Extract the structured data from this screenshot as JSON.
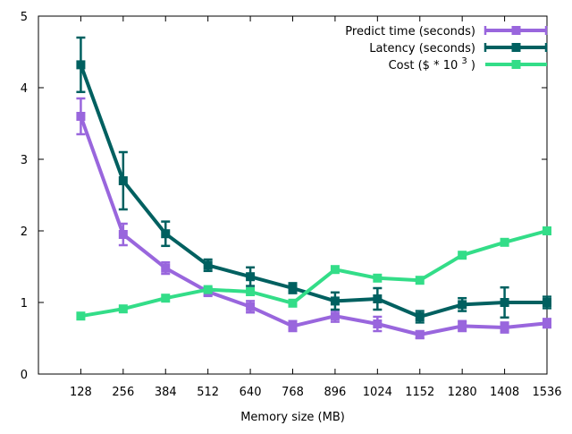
{
  "chart_data": {
    "type": "line",
    "title": "",
    "xlabel": "Memory size (MB)",
    "ylabel": "",
    "xlim": [
      0,
      1536
    ],
    "ylim": [
      0,
      5
    ],
    "grid": false,
    "legend_position": "top-right",
    "categories": [
      "128",
      "256",
      "384",
      "512",
      "640",
      "768",
      "896",
      "1024",
      "1152",
      "1280",
      "1408",
      "1536"
    ],
    "x": [
      128,
      256,
      384,
      512,
      640,
      768,
      896,
      1024,
      1152,
      1280,
      1408,
      1536
    ],
    "y_ticks": [
      "0",
      "1",
      "2",
      "3",
      "4",
      "5"
    ],
    "series": [
      {
        "name": "Predict time (seconds)",
        "color": "#9966dd",
        "values": [
          3.6,
          1.95,
          1.48,
          1.15,
          0.94,
          0.67,
          0.81,
          0.7,
          0.55,
          0.67,
          0.65,
          0.71
        ],
        "err": [
          0.25,
          0.15,
          0.08,
          0.06,
          0.08,
          0.07,
          0.08,
          0.1,
          0.05,
          0.07,
          0.07,
          0.06
        ]
      },
      {
        "name": "Latency (seconds)",
        "color": "#006060",
        "values": [
          4.32,
          2.7,
          1.96,
          1.52,
          1.36,
          1.2,
          1.02,
          1.05,
          0.8,
          0.97,
          1.0,
          1.0
        ],
        "err": [
          0.38,
          0.4,
          0.17,
          0.08,
          0.13,
          0.07,
          0.12,
          0.15,
          0.08,
          0.09,
          0.21,
          0.08
        ]
      },
      {
        "name": "Cost ($ * 10 3 )",
        "color": "#33dd88",
        "values": [
          0.81,
          0.91,
          1.06,
          1.18,
          1.15,
          0.99,
          1.46,
          1.34,
          1.31,
          1.66,
          1.84,
          2.0
        ],
        "err": null
      }
    ],
    "legend": {
      "cost_prefix": "Cost ($ * 10",
      "cost_superscript": "3",
      "cost_suffix": ")"
    }
  }
}
